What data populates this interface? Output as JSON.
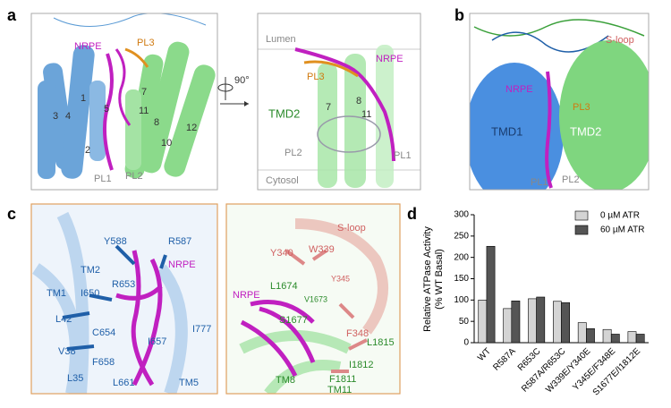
{
  "panels": {
    "a": {
      "label": "a",
      "left": [
        "NRPE",
        "PL3",
        "1",
        "3",
        "4",
        "5",
        "2",
        "7",
        "11",
        "8",
        "10",
        "12",
        "PL1",
        "PL2"
      ],
      "rotation": "90°",
      "right": [
        "Lumen",
        "NRPE",
        "PL3",
        "TMD2",
        "7",
        "8",
        "11",
        "PL2",
        "PL1",
        "Cytosol"
      ]
    },
    "b": {
      "label": "b",
      "texts": [
        "S-loop",
        "NRPE",
        "TMD1",
        "PL3",
        "TMD2",
        "PL1",
        "PL2"
      ]
    },
    "c": {
      "label": "c",
      "left": [
        "Y588",
        "R587",
        "TM2",
        "NRPE",
        "TM1",
        "I650",
        "R653",
        "L42",
        "C654",
        "I777",
        "I657",
        "V38",
        "F658",
        "L35",
        "L661",
        "TM5"
      ],
      "right": [
        "S-loop",
        "Y340",
        "W339",
        "NRPE",
        "L1674",
        "V1673",
        "Y345",
        "S1677",
        "F348",
        "L1815",
        "I1812",
        "F1811",
        "TM8",
        "TM11"
      ]
    },
    "d": {
      "label": "d"
    }
  },
  "chart_data": {
    "type": "bar",
    "y_label": [
      "Relative ATPase Activity",
      "(% WT Basal)"
    ],
    "categories": [
      "WT",
      "R587A",
      "R653C",
      "R587A/R653C",
      "W339E/Y340E",
      "Y345E/F348E",
      "S1677E/I1812E"
    ],
    "series": [
      {
        "name": "0 µM ATR",
        "color": "#d4d4d4",
        "values": [
          100,
          80,
          103,
          97,
          47,
          31,
          26
        ]
      },
      {
        "name": "60 µM ATR",
        "color": "#555555",
        "values": [
          226,
          98,
          107,
          94,
          33,
          20,
          20
        ]
      }
    ],
    "ylim": [
      0,
      300
    ],
    "yticks": [
      0,
      50,
      100,
      150,
      200,
      250,
      300
    ],
    "legend": "upper right"
  }
}
